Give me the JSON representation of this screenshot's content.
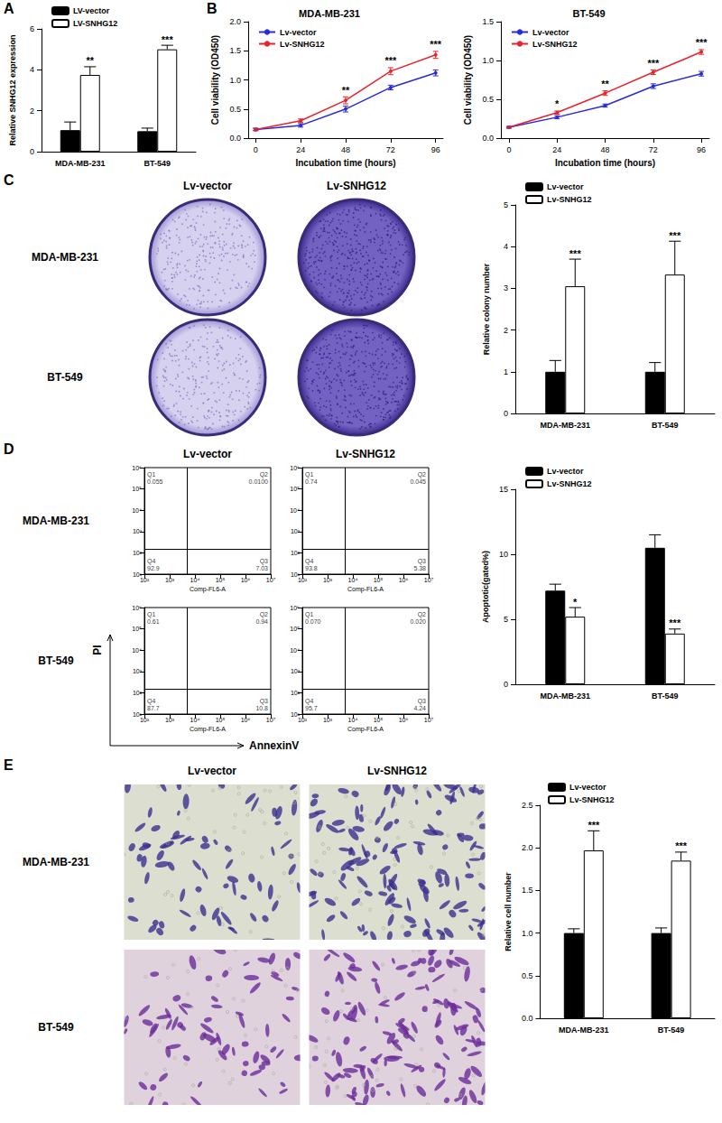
{
  "chart_data": [
    {
      "type": "bar",
      "panel": "A",
      "categories": [
        "MDA-MB-231",
        "BT-549"
      ],
      "ylabel": "Relative SNHG12 expression",
      "ylim": [
        0,
        6
      ],
      "yticks": [
        0,
        2,
        4,
        6
      ],
      "grid": false,
      "legend": "upper left",
      "series": [
        {
          "name": "LV-vector",
          "color": "#000000",
          "values": [
            1.05,
            1.0
          ],
          "errors": [
            0.4,
            0.15
          ]
        },
        {
          "name": "LV-SNHG12",
          "color": "#ffffff",
          "values": [
            3.75,
            5.0
          ],
          "errors": [
            0.4,
            0.2
          ],
          "annotations": [
            "**",
            "***"
          ]
        }
      ]
    },
    {
      "type": "line",
      "panel": "B",
      "title": "MDA-MB-231",
      "x": [
        0,
        24,
        48,
        72,
        96
      ],
      "xlim": [
        -4,
        100
      ],
      "xticks": [
        0,
        24,
        48,
        72,
        96
      ],
      "xlabel": "Incubation time (hours)",
      "ylabel": "Cell viability (OD450)",
      "ylim": [
        0,
        2
      ],
      "yticks": [
        {
          "value": 0,
          "label": "0.0"
        },
        0.5,
        {
          "value": 1,
          "label": "1.0"
        },
        1.5,
        {
          "value": 2,
          "label": "2.0"
        }
      ],
      "grid": false,
      "legend": "upper left",
      "series": [
        {
          "name": "Lv-vector",
          "color": "#2a2ad9",
          "marker": "circle",
          "values": [
            0.15,
            0.22,
            0.5,
            0.87,
            1.12
          ],
          "errors": [
            0.02,
            0.03,
            0.05,
            0.04,
            0.05
          ]
        },
        {
          "name": "Lv-SNHG12",
          "color": "#e8232b",
          "marker": "circle",
          "values": [
            0.15,
            0.3,
            0.65,
            1.15,
            1.43
          ],
          "errors": [
            0.02,
            0.03,
            0.06,
            0.06,
            0.06
          ],
          "annotations": [
            null,
            null,
            "**",
            "***",
            "***"
          ]
        }
      ]
    },
    {
      "type": "line",
      "title": "BT-549",
      "x": [
        0,
        24,
        48,
        72,
        96
      ],
      "xlim": [
        -4,
        100
      ],
      "xticks": [
        0,
        24,
        48,
        72,
        96
      ],
      "xlabel": "Incubation time (hours)",
      "ylabel": "Cell viability (OD450)",
      "ylim": [
        0,
        1.5
      ],
      "yticks": [
        {
          "value": 0,
          "label": "0.0"
        },
        0.5,
        {
          "value": 1,
          "label": "1.0"
        },
        1.5
      ],
      "grid": false,
      "legend": "upper left",
      "series": [
        {
          "name": "Lv-vector",
          "color": "#2a2ad9",
          "marker": "circle",
          "values": [
            0.14,
            0.27,
            0.42,
            0.67,
            0.83
          ],
          "errors": [
            0.01,
            0.02,
            0.02,
            0.03,
            0.03
          ]
        },
        {
          "name": "Lv-SNHG12",
          "color": "#e8232b",
          "marker": "circle",
          "values": [
            0.14,
            0.33,
            0.58,
            0.85,
            1.11
          ],
          "errors": [
            0.01,
            0.02,
            0.03,
            0.03,
            0.03
          ],
          "annotations": [
            null,
            "*",
            "**",
            "***",
            "***"
          ]
        }
      ]
    },
    {
      "type": "bar",
      "categories": [
        "MDA-MB-231",
        "BT-549"
      ],
      "ylabel": "Relative colony number",
      "ylim": [
        0,
        5
      ],
      "yticks": [
        0,
        1,
        2,
        3,
        4,
        5
      ],
      "grid": false,
      "legend": "upper left",
      "series": [
        {
          "name": "Lv-vector",
          "color": "#000000",
          "values": [
            1.0,
            1.0
          ],
          "errors": [
            0.27,
            0.22
          ]
        },
        {
          "name": "Lv-SNHG12",
          "color": "#ffffff",
          "values": [
            3.05,
            3.33
          ],
          "errors": [
            0.65,
            0.8
          ],
          "annotations": [
            "***",
            "***"
          ]
        }
      ]
    },
    {
      "type": "flow",
      "panel": "D",
      "columns": [
        "Lv-vector",
        "Lv-SNHG12"
      ],
      "rows": [
        "MDA-MB-231",
        "BT-549"
      ],
      "xlabel": "Comp-FL6-A",
      "shared_xlabel": "AnnexinV",
      "shared_ylabel": "PI",
      "log": true,
      "xlim": [
        100,
        10000000
      ],
      "xticks": [
        {
          "value": 100,
          "label": "10²"
        },
        {
          "value": 1000,
          "label": "10³"
        },
        {
          "value": 10000,
          "label": "10⁴"
        },
        {
          "value": 100000,
          "label": "10⁵"
        },
        {
          "value": 1000000,
          "label": "10⁶"
        },
        {
          "value": 10000000,
          "label": "10⁷"
        }
      ],
      "ylim": [
        10,
        1000000
      ],
      "yticks": [
        {
          "value": 10,
          "label": "10¹"
        },
        {
          "value": 100,
          "label": "10²"
        },
        {
          "value": 1000,
          "label": "10³"
        },
        {
          "value": 10000,
          "label": "10⁴"
        },
        {
          "value": 100000,
          "label": "10⁵"
        },
        {
          "value": 1000000,
          "label": "10⁶"
        }
      ],
      "gate": {
        "x": 5000,
        "y": 150
      },
      "quadrants": [
        "Q1",
        "Q2",
        "Q3",
        "Q4"
      ],
      "plots": [
        [
          {
            "values": [
              0.055,
              0.01,
              7.03,
              92.9
            ],
            "value_labels": [
              "0.055",
              "0.0100",
              "7.03",
              "92.9"
            ]
          },
          {
            "values": [
              0.74,
              0.045,
              5.38,
              93.8
            ],
            "value_labels": [
              "0.74",
              "0.045",
              "5.38",
              "93.8"
            ]
          }
        ],
        [
          {
            "values": [
              0.61,
              0.94,
              10.8,
              87.7
            ],
            "value_labels": [
              "0.61",
              "0.94",
              "10.8",
              "87.7"
            ]
          },
          {
            "values": [
              0.07,
              0.02,
              4.24,
              95.7
            ],
            "value_labels": [
              "0.070",
              "0.020",
              "4.24",
              "95.7"
            ]
          }
        ]
      ]
    },
    {
      "type": "bar",
      "categories": [
        "MDA-MB-231",
        "BT-549"
      ],
      "ylabel": "Apoptotic(gated%)",
      "ylim": [
        0,
        15
      ],
      "yticks": [
        0,
        5,
        10,
        15
      ],
      "grid": false,
      "legend": "upper left",
      "series": [
        {
          "name": "Lv-vector",
          "color": "#000000",
          "values": [
            7.2,
            10.5
          ],
          "errors": [
            0.5,
            1.0
          ]
        },
        {
          "name": "Lv-SNHG12",
          "color": "#ffffff",
          "values": [
            5.2,
            3.9
          ],
          "errors": [
            0.7,
            0.35
          ],
          "annotations": [
            "*",
            "***"
          ]
        }
      ]
    },
    {
      "type": "bar",
      "categories": [
        "MDA-MB-231",
        "BT-549"
      ],
      "ylabel": "Relative cell number",
      "ylim": [
        0,
        2.5
      ],
      "yticks": [
        {
          "value": 0,
          "label": "0.0"
        },
        0.5,
        {
          "value": 1,
          "label": "1.0"
        },
        1.5,
        {
          "value": 2,
          "label": "2.0"
        },
        2.5
      ],
      "grid": false,
      "legend": "upper left",
      "series": [
        {
          "name": "Lv-vector",
          "color": "#000000",
          "values": [
            1.0,
            1.0
          ],
          "errors": [
            0.05,
            0.06
          ]
        },
        {
          "name": "Lv-SNHG12",
          "color": "#ffffff",
          "values": [
            1.97,
            1.85
          ],
          "errors": [
            0.23,
            0.1
          ],
          "annotations": [
            "***",
            "***"
          ]
        }
      ]
    }
  ],
  "images": [
    {
      "type": "plate",
      "panel": "C",
      "columns": [
        "Lv-vector",
        "Lv-SNHG12"
      ],
      "rows": [
        "MDA-MB-231",
        "BT-549"
      ]
    },
    {
      "type": "micrograph",
      "panel": "E",
      "columns": [
        "Lv-vector",
        "Lv-SNHG12"
      ],
      "rows": [
        "MDA-MB-231",
        "BT-549"
      ]
    }
  ]
}
